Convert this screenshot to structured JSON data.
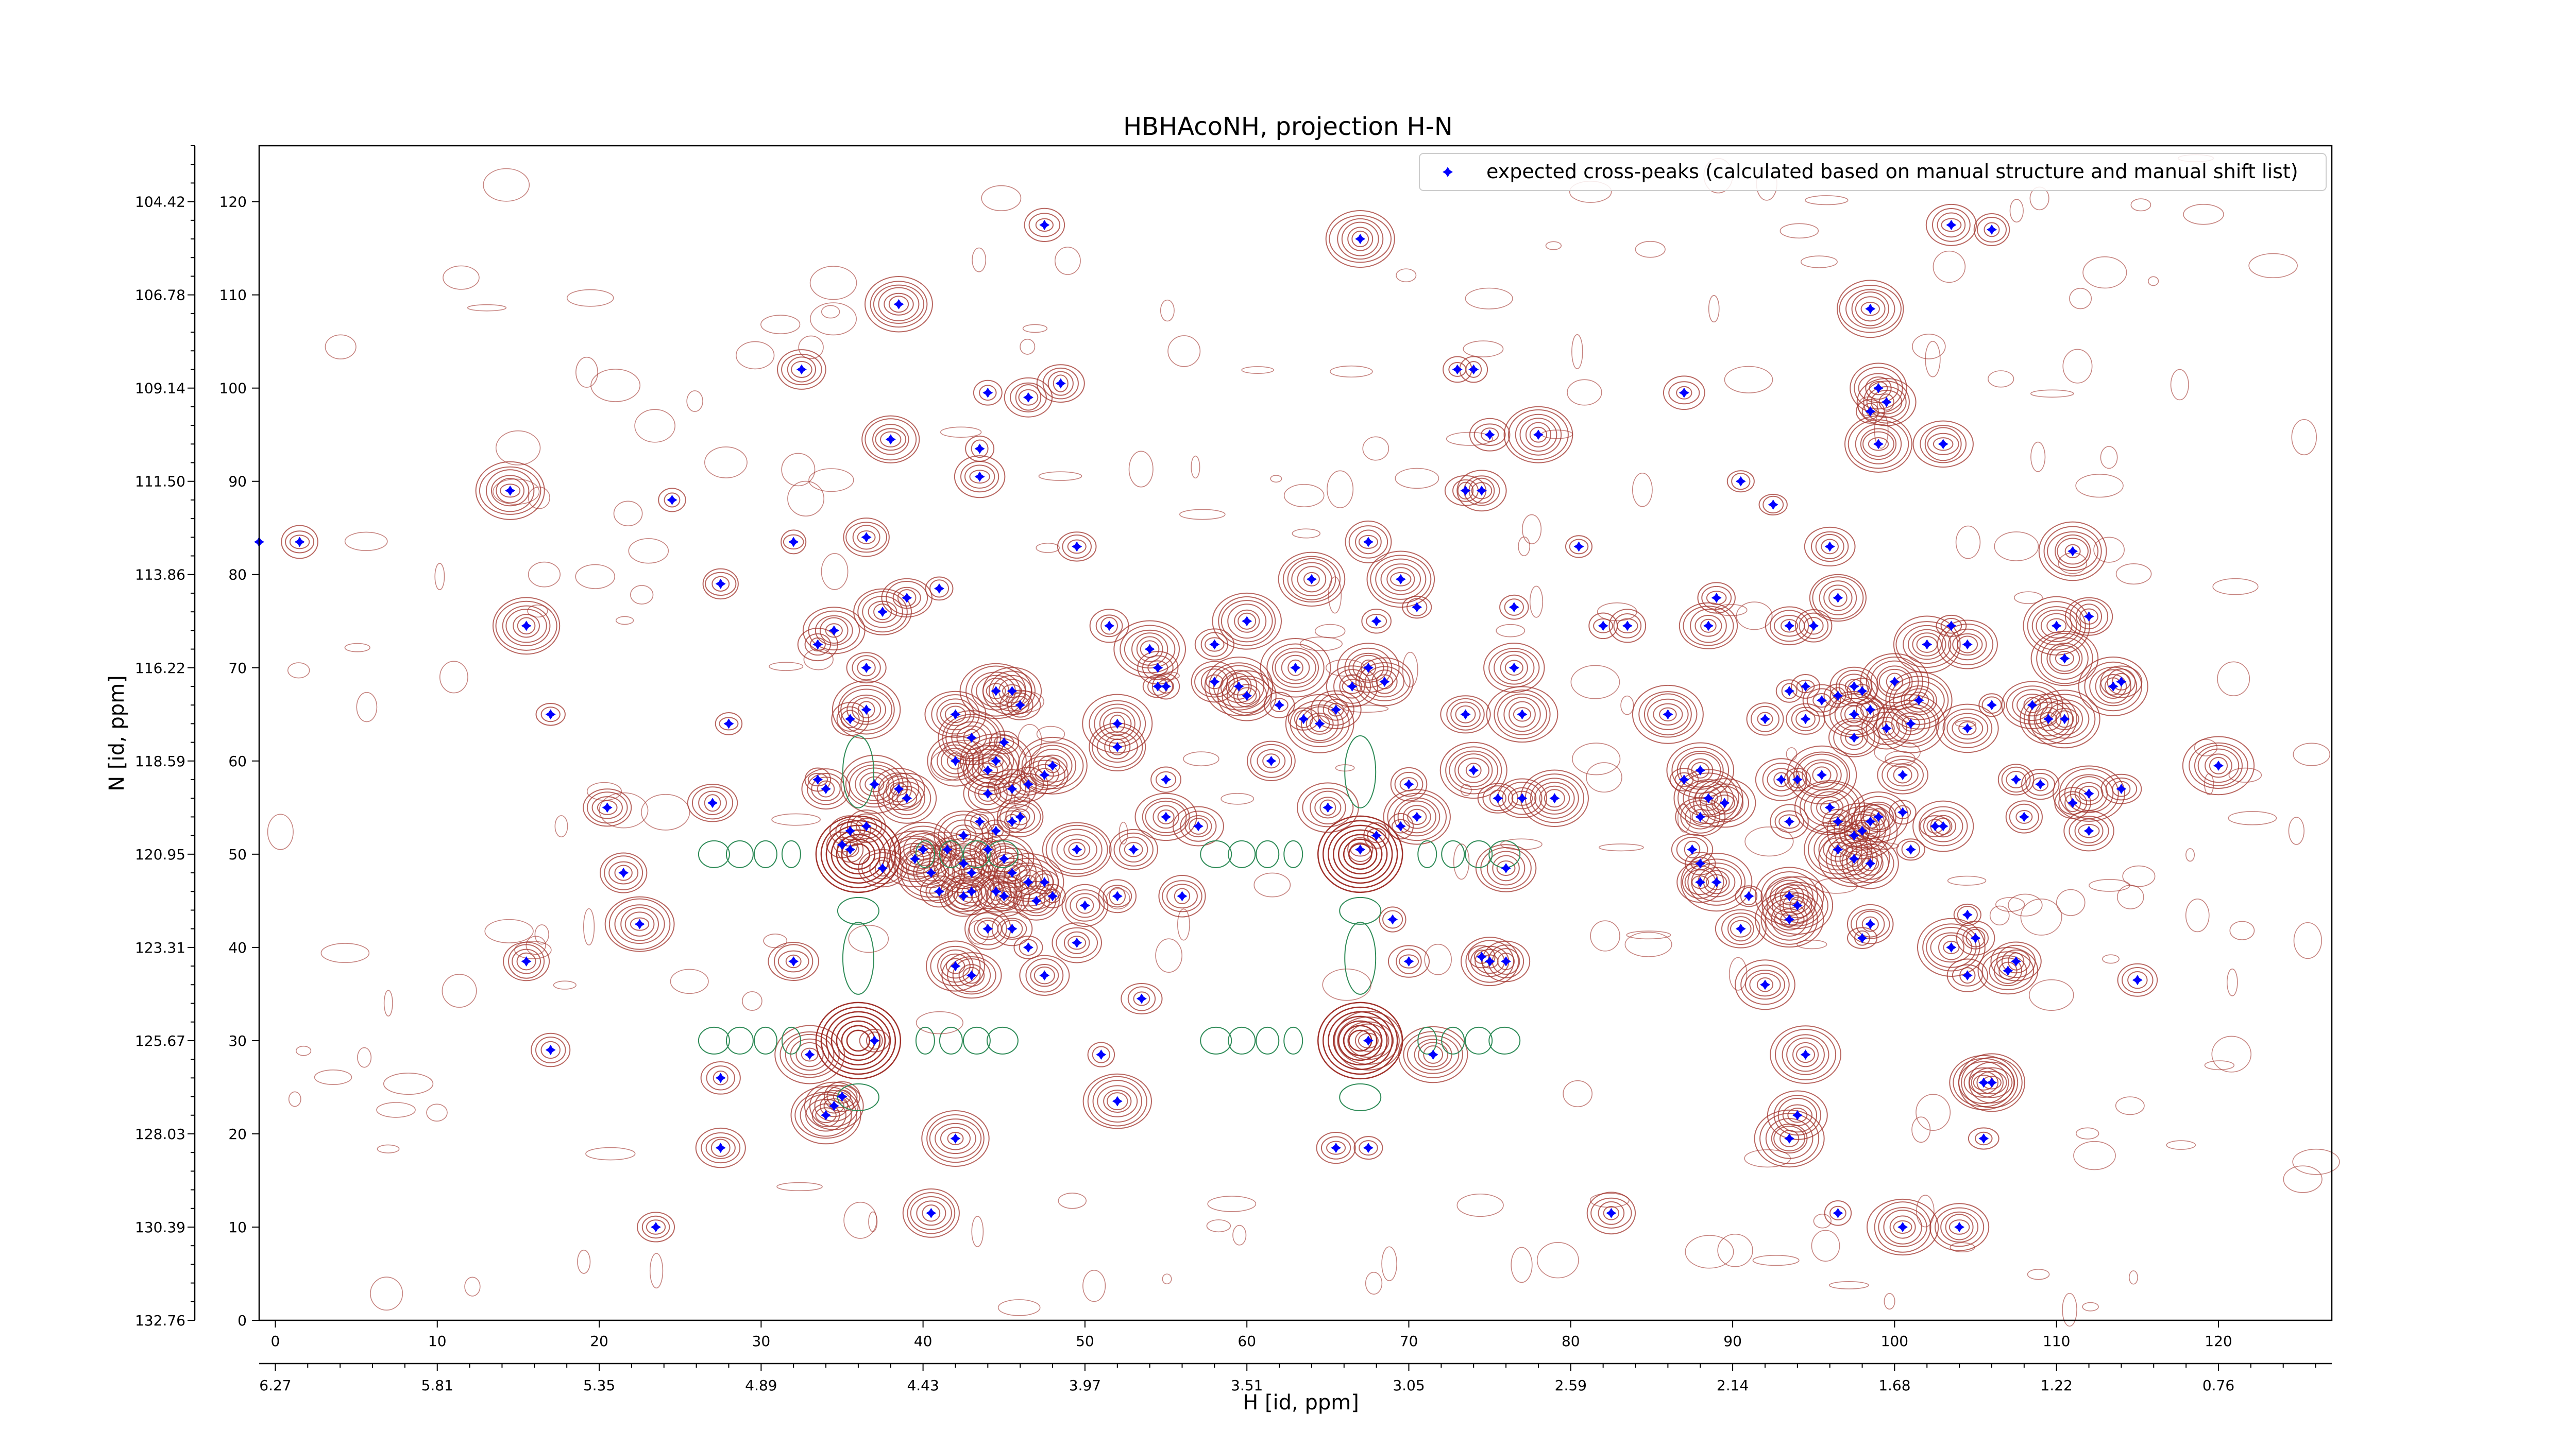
{
  "chart_data": {
    "type": "scatter",
    "title": "HBHAcoNH, projection H-N",
    "xlabel": "H [id, ppm]",
    "ylabel": "N [id, ppm]",
    "x_index_ticks": [
      0,
      10,
      20,
      30,
      40,
      50,
      60,
      70,
      80,
      90,
      100,
      110,
      120
    ],
    "x_ppm_ticks": [
      "6.27",
      "5.81",
      "5.35",
      "4.89",
      "4.43",
      "3.97",
      "3.51",
      "3.05",
      "2.59",
      "2.14",
      "1.68",
      "1.22",
      "0.76"
    ],
    "y_index_ticks": [
      0,
      10,
      20,
      30,
      40,
      50,
      60,
      70,
      80,
      90,
      100,
      110,
      120
    ],
    "y_ppm_ticks": [
      "132.76",
      "130.39",
      "128.03",
      "125.67",
      "123.31",
      "120.95",
      "118.59",
      "116.22",
      "113.86",
      "111.50",
      "109.14",
      "106.78",
      "104.42"
    ],
    "xlim": [
      -1,
      127
    ],
    "ylim": [
      0,
      126
    ],
    "legend": {
      "label": "expected cross-peaks (calculated based on manual structure and manual shift list)",
      "placement": "top-right",
      "marker_color": "#0000ff"
    },
    "contour_colors": {
      "positive": "#a0312a",
      "negative": "#2e8b57"
    },
    "series": [
      {
        "name": "expected cross-peaks (calculated based on manual structure and manual shift list)",
        "color": "#0000ff",
        "points": [
          [
            -1,
            83.5
          ],
          [
            1.5,
            83.5
          ],
          [
            14.5,
            89
          ],
          [
            24.5,
            88
          ],
          [
            15.5,
            74.5
          ],
          [
            17,
            65
          ],
          [
            27.5,
            79
          ],
          [
            28,
            64
          ],
          [
            27,
            55.5
          ],
          [
            21.5,
            48
          ],
          [
            22.5,
            42.5
          ],
          [
            15.5,
            38.5
          ],
          [
            20.5,
            55
          ],
          [
            17,
            29
          ],
          [
            27.5,
            26
          ],
          [
            27.5,
            18.5
          ],
          [
            23.5,
            10
          ],
          [
            32.5,
            102
          ],
          [
            32,
            83.5
          ],
          [
            33.5,
            72.5
          ],
          [
            34.5,
            74
          ],
          [
            35.5,
            64.5
          ],
          [
            36.5,
            70
          ],
          [
            33.5,
            58
          ],
          [
            34,
            57
          ],
          [
            35.5,
            52.5
          ],
          [
            35,
            51
          ],
          [
            35.5,
            50.5
          ],
          [
            36.5,
            53
          ],
          [
            36.5,
            65.5
          ],
          [
            38,
            94.5
          ],
          [
            38.5,
            109
          ],
          [
            36.5,
            84
          ],
          [
            37.5,
            76
          ],
          [
            39,
            77.5
          ],
          [
            41,
            78.5
          ],
          [
            37,
            57.5
          ],
          [
            38.5,
            57
          ],
          [
            39,
            56
          ],
          [
            37.5,
            48.5
          ],
          [
            39.5,
            49.5
          ],
          [
            40,
            50.5
          ],
          [
            41.5,
            50.5
          ],
          [
            40.5,
            48
          ],
          [
            41,
            46
          ],
          [
            32,
            38.5
          ],
          [
            37,
            30
          ],
          [
            33,
            28.5
          ],
          [
            34.5,
            23
          ],
          [
            34,
            22
          ],
          [
            35,
            24
          ],
          [
            42,
            19.5
          ],
          [
            40.5,
            11.5
          ],
          [
            47.5,
            117.5
          ],
          [
            46.5,
            99
          ],
          [
            44,
            99.5
          ],
          [
            48.5,
            100.5
          ],
          [
            43.5,
            93.5
          ],
          [
            43.5,
            90.5
          ],
          [
            49.5,
            83
          ],
          [
            51.5,
            74.5
          ],
          [
            54,
            72
          ],
          [
            54.5,
            70
          ],
          [
            54.5,
            68
          ],
          [
            55,
            68
          ],
          [
            58,
            72.5
          ],
          [
            58,
            68.5
          ],
          [
            60,
            75
          ],
          [
            59.5,
            68
          ],
          [
            60,
            67
          ],
          [
            44.5,
            67.5
          ],
          [
            45.5,
            67.5
          ],
          [
            46,
            66
          ],
          [
            42,
            65
          ],
          [
            43,
            62.5
          ],
          [
            45,
            62
          ],
          [
            42,
            60
          ],
          [
            44,
            59
          ],
          [
            44.5,
            60
          ],
          [
            45.5,
            57
          ],
          [
            44,
            56.5
          ],
          [
            46.5,
            57.5
          ],
          [
            47.5,
            58.5
          ],
          [
            48,
            59.5
          ],
          [
            43.5,
            53.5
          ],
          [
            45.5,
            53.5
          ],
          [
            46,
            54
          ],
          [
            44.5,
            52.5
          ],
          [
            42.5,
            52
          ],
          [
            44,
            50.5
          ],
          [
            42.5,
            49
          ],
          [
            43,
            48
          ],
          [
            45,
            49.5
          ],
          [
            45.5,
            48
          ],
          [
            46.5,
            47
          ],
          [
            47.5,
            47
          ],
          [
            49.5,
            50.5
          ],
          [
            48,
            45.5
          ],
          [
            47,
            45
          ],
          [
            45,
            45.5
          ],
          [
            44.5,
            46
          ],
          [
            43,
            46
          ],
          [
            42.5,
            45.5
          ],
          [
            44,
            42
          ],
          [
            45.5,
            42
          ],
          [
            46.5,
            40
          ],
          [
            49.5,
            40.5
          ],
          [
            42,
            38
          ],
          [
            43,
            37
          ],
          [
            47.5,
            37
          ],
          [
            50,
            44.5
          ],
          [
            52,
            45.5
          ],
          [
            53,
            50.5
          ],
          [
            55,
            54
          ],
          [
            55,
            58
          ],
          [
            56,
            45.5
          ],
          [
            57,
            53
          ],
          [
            52,
            64
          ],
          [
            52,
            61.5
          ],
          [
            53.5,
            34.5
          ],
          [
            52,
            23.5
          ],
          [
            51,
            28.5
          ],
          [
            63,
            70
          ],
          [
            61.5,
            60
          ],
          [
            62,
            66
          ],
          [
            63.5,
            64.5
          ],
          [
            64.5,
            64
          ],
          [
            66.5,
            68
          ],
          [
            65.5,
            65.5
          ],
          [
            67.5,
            70
          ],
          [
            68.5,
            68.5
          ],
          [
            67.5,
            83.5
          ],
          [
            67,
            116
          ],
          [
            68,
            75
          ],
          [
            69.5,
            79.5
          ],
          [
            70.5,
            76.5
          ],
          [
            64,
            79.5
          ],
          [
            65,
            55
          ],
          [
            67,
            50.5
          ],
          [
            68,
            52
          ],
          [
            69.5,
            53
          ],
          [
            70.5,
            54
          ],
          [
            70,
            57.5
          ],
          [
            69,
            43
          ],
          [
            70,
            38.5
          ],
          [
            67.5,
            30
          ],
          [
            71.5,
            28.5
          ],
          [
            65.5,
            18.5
          ],
          [
            67.5,
            18.5
          ],
          [
            73,
            102
          ],
          [
            74,
            102
          ],
          [
            73.5,
            89
          ],
          [
            74.5,
            89
          ],
          [
            75,
            95
          ],
          [
            78,
            95
          ],
          [
            73.5,
            65
          ],
          [
            76.5,
            76.5
          ],
          [
            76.5,
            70
          ],
          [
            77,
            65
          ],
          [
            74,
            59
          ],
          [
            75.5,
            56
          ],
          [
            77,
            56
          ],
          [
            79,
            56
          ],
          [
            76,
            48.5
          ],
          [
            74.5,
            39
          ],
          [
            75,
            38.5
          ],
          [
            76,
            38.5
          ],
          [
            80.5,
            83
          ],
          [
            82,
            74.5
          ],
          [
            83.5,
            74.5
          ],
          [
            82.5,
            11.5
          ],
          [
            87,
            99.5
          ],
          [
            89,
            77.5
          ],
          [
            88.5,
            74.5
          ],
          [
            86,
            65
          ],
          [
            87,
            58
          ],
          [
            88,
            59
          ],
          [
            88.5,
            56
          ],
          [
            89.5,
            55.5
          ],
          [
            88,
            54
          ],
          [
            87.5,
            50.5
          ],
          [
            88,
            47
          ],
          [
            89,
            47
          ],
          [
            88,
            49
          ],
          [
            90.5,
            42
          ],
          [
            91,
            45.5
          ],
          [
            90.5,
            90
          ],
          [
            92.5,
            87.5
          ],
          [
            93.5,
            74.5
          ],
          [
            95,
            74.5
          ],
          [
            96.5,
            77.5
          ],
          [
            96,
            83
          ],
          [
            98.5,
            108.5
          ],
          [
            99,
            100
          ],
          [
            99.5,
            98.5
          ],
          [
            98.5,
            97.5
          ],
          [
            99,
            94
          ],
          [
            92,
            64.5
          ],
          [
            94.5,
            64.5
          ],
          [
            93.5,
            67.5
          ],
          [
            94.5,
            68
          ],
          [
            93,
            58
          ],
          [
            94,
            58
          ],
          [
            95.5,
            58.5
          ],
          [
            97.5,
            62.5
          ],
          [
            97.5,
            65
          ],
          [
            98.5,
            65.5
          ],
          [
            99.5,
            63.5
          ],
          [
            101,
            64
          ],
          [
            100,
            68.5
          ],
          [
            101.5,
            66.5
          ],
          [
            95.5,
            66.5
          ],
          [
            96.5,
            67
          ],
          [
            97.5,
            68
          ],
          [
            98,
            67.5
          ],
          [
            93.5,
            53.5
          ],
          [
            96,
            55
          ],
          [
            96.5,
            53.5
          ],
          [
            97.5,
            52
          ],
          [
            98,
            52.5
          ],
          [
            98.5,
            53.5
          ],
          [
            99,
            54
          ],
          [
            96.5,
            50.5
          ],
          [
            97.5,
            49.5
          ],
          [
            98.5,
            49
          ],
          [
            100.5,
            54.5
          ],
          [
            101,
            50.5
          ],
          [
            102.5,
            53
          ],
          [
            103,
            53
          ],
          [
            93.5,
            43
          ],
          [
            94,
            44.5
          ],
          [
            93.5,
            45.5
          ],
          [
            98,
            41
          ],
          [
            98.5,
            42.5
          ],
          [
            92,
            36
          ],
          [
            94.5,
            28.5
          ],
          [
            94,
            22
          ],
          [
            93.5,
            19.5
          ],
          [
            96.5,
            11.5
          ],
          [
            100.5,
            10
          ],
          [
            103.5,
            40
          ],
          [
            104.5,
            43.5
          ],
          [
            104.5,
            37
          ],
          [
            105,
            41
          ],
          [
            105.5,
            25.5
          ],
          [
            106,
            25.5
          ],
          [
            107,
            37.5
          ],
          [
            107.5,
            38.5
          ],
          [
            104,
            10
          ],
          [
            105.5,
            19.5
          ],
          [
            103.5,
            117.5
          ],
          [
            103,
            94
          ],
          [
            106,
            117
          ],
          [
            103.5,
            74.5
          ],
          [
            102,
            72.5
          ],
          [
            104.5,
            72.5
          ],
          [
            110,
            74.5
          ],
          [
            112,
            75.5
          ],
          [
            110.5,
            71
          ],
          [
            111,
            82.5
          ],
          [
            109.5,
            64.5
          ],
          [
            110.5,
            64.5
          ],
          [
            108.5,
            66
          ],
          [
            111,
            55.5
          ],
          [
            112,
            52.5
          ],
          [
            112,
            56.5
          ],
          [
            114,
            57
          ],
          [
            114,
            68.5
          ],
          [
            113.5,
            68
          ],
          [
            115,
            36.5
          ],
          [
            120,
            59.5
          ],
          [
            100.5,
            58.5
          ],
          [
            106,
            66
          ],
          [
            104.5,
            63.5
          ],
          [
            107.5,
            58
          ],
          [
            109,
            57.5
          ],
          [
            108,
            54
          ]
        ]
      }
    ]
  }
}
